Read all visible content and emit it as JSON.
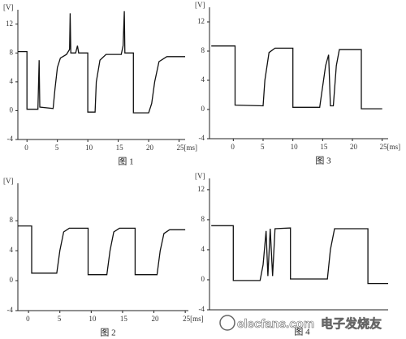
{
  "chart_data": [
    {
      "type": "line",
      "y_label": "[V]",
      "caption": "图 1",
      "xlim": [
        -1.5,
        26
      ],
      "ylim": [
        -4,
        14
      ],
      "xticks": [
        0,
        5,
        10,
        15,
        20,
        {
          "value": 25,
          "label": "25[ms]"
        }
      ],
      "yticks": [
        -4,
        0,
        4,
        8,
        12
      ],
      "series": [
        {
          "color": "#111111",
          "x": [
            -1.5,
            0,
            0,
            1.8,
            2,
            2.1,
            4.3,
            4.6,
            5,
            5.5,
            6.5,
            7,
            7.1,
            7.2,
            8,
            8.3,
            8.5,
            10,
            10,
            11.2,
            11.4,
            12,
            13,
            15.5,
            15.8,
            16,
            16.1,
            17.5,
            17.5,
            20,
            20.5,
            21,
            21.7,
            23,
            26
          ],
          "values": [
            8.2,
            8.2,
            0.2,
            0.2,
            7,
            0.5,
            0.3,
            3,
            6,
            7.3,
            7.8,
            8.5,
            13.5,
            8,
            8,
            9,
            8,
            8,
            -0.2,
            -0.2,
            4,
            7,
            7.8,
            7.8,
            9,
            13.8,
            8,
            8,
            -0.3,
            -0.3,
            1,
            4,
            6.8,
            7.5,
            7.5
          ]
        }
      ]
    },
    {
      "type": "line",
      "y_label": "[V]",
      "caption": "图 3",
      "xlim": [
        -4,
        26
      ],
      "ylim": [
        -4,
        14
      ],
      "xticks": [
        0,
        5,
        10,
        15,
        20,
        {
          "value": 25,
          "label": "25[ms]"
        }
      ],
      "yticks": [
        -4,
        0,
        4,
        8,
        12
      ],
      "series": [
        {
          "color": "#111111",
          "x": [
            -3.7,
            0.3,
            0.3,
            5,
            5.3,
            6,
            7,
            10,
            10,
            14.5,
            15.5,
            16,
            16.3,
            16.8,
            17.3,
            17.8,
            21.5,
            21.5,
            25
          ],
          "values": [
            8.7,
            8.7,
            0.6,
            0.5,
            4,
            7.8,
            8.4,
            8.4,
            0.3,
            0.3,
            6,
            7.5,
            0.5,
            0.5,
            6,
            8.2,
            8.2,
            0.1,
            0.1
          ]
        }
      ]
    },
    {
      "type": "line",
      "y_label": "[V]",
      "caption": "图 2",
      "xlim": [
        -1.7,
        25.5
      ],
      "ylim": [
        -4,
        13
      ],
      "xticks": [
        0,
        5,
        10,
        15,
        20,
        {
          "value": 25,
          "label": "25[ms]"
        }
      ],
      "yticks": [
        -4,
        0,
        4,
        8
      ],
      "series": [
        {
          "color": "#111111",
          "x": [
            -1.7,
            0.5,
            0.5,
            4.5,
            5,
            5.6,
            6.5,
            9.5,
            9.5,
            12.5,
            13,
            13.6,
            14.5,
            17,
            17,
            20.5,
            21,
            21.6,
            22.5,
            25
          ],
          "values": [
            7.3,
            7.3,
            1,
            1,
            4,
            6.5,
            7,
            7,
            0.8,
            0.8,
            4,
            6.5,
            7,
            7,
            0.8,
            0.8,
            4,
            6.3,
            6.8,
            6.8
          ]
        }
      ]
    },
    {
      "type": "line",
      "y_label": "[V]",
      "caption": "图 4",
      "xlim": [
        -4,
        26
      ],
      "ylim": [
        -4,
        13.5
      ],
      "xticks": [],
      "yticks": [
        -4,
        0,
        4,
        8,
        12
      ],
      "series": [
        {
          "color": "#111111",
          "x": [
            -3.7,
            0,
            0,
            4.5,
            5,
            5.5,
            5.8,
            6.2,
            6.6,
            7,
            9.6,
            9.6,
            15.8,
            16.3,
            17,
            22.6,
            22.6,
            26
          ],
          "values": [
            7.2,
            7.2,
            -0.1,
            -0.1,
            2,
            6.5,
            0.5,
            6.8,
            0.5,
            6.8,
            6.9,
            0.1,
            0.1,
            4,
            6.8,
            6.8,
            -0.5,
            -0.5
          ]
        }
      ]
    }
  ],
  "watermark": {
    "site": "elecfans.com",
    "brand": "电子发烧友"
  }
}
